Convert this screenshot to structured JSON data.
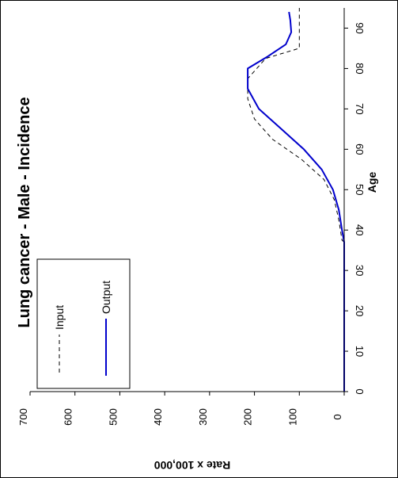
{
  "chart_data": {
    "type": "line",
    "title": "Lung cancer - Male - Incidence",
    "xlabel": "Age",
    "ylabel": "Rate x 100,000",
    "xlim": [
      0,
      95
    ],
    "ylim": [
      0,
      700
    ],
    "xticks": [
      "0",
      "10",
      "20",
      "30",
      "40",
      "50",
      "60",
      "70",
      "80",
      "90"
    ],
    "yticks": [
      "0",
      "100",
      "200",
      "300",
      "400",
      "500",
      "600",
      "700"
    ],
    "grid": false,
    "legend_position": "top-left",
    "orientation": "rotated-90",
    "series": [
      {
        "name": "Input",
        "style": "dashed",
        "color": "#000000",
        "x": [
          0,
          37,
          37.5,
          42.5,
          47.5,
          52.5,
          57.5,
          62.5,
          67.5,
          72.5,
          77.5,
          82.5,
          85,
          95
        ],
        "y": [
          0,
          0,
          5,
          12,
          22,
          45,
          95,
          160,
          200,
          215,
          215,
          175,
          100,
          100
        ]
      },
      {
        "name": "Output",
        "style": "solid",
        "color": "#0000cc",
        "x": [
          0,
          37,
          40,
          45,
          50,
          55,
          60,
          65,
          70,
          75,
          80,
          83,
          86,
          89,
          92,
          94
        ],
        "y": [
          0,
          0,
          5,
          12,
          25,
          50,
          90,
          140,
          190,
          215,
          215,
          170,
          130,
          118,
          120,
          123
        ]
      }
    ]
  }
}
